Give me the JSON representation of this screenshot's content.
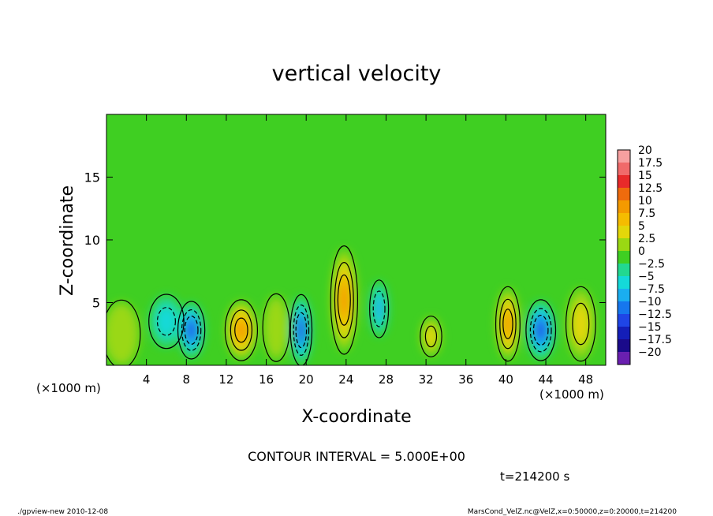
{
  "chart_data": {
    "type": "heatmap",
    "title": "vertical velocity",
    "xlabel": "X-coordinate",
    "ylabel": "Z-coordinate",
    "x_unit_left": "(×1000 m)",
    "x_unit_right": "(×1000 m)",
    "xlim": [
      0,
      50
    ],
    "ylim": [
      0,
      20
    ],
    "x_ticks": [
      "4",
      "8",
      "12",
      "16",
      "20",
      "24",
      "28",
      "32",
      "36",
      "40",
      "44",
      "48"
    ],
    "y_ticks": [
      "5",
      "10",
      "15"
    ],
    "contour_interval_text": "CONTOUR INTERVAL = 5.000E+00",
    "time_text": "t=214200 s",
    "colorbar": {
      "labels": [
        "20",
        "17.5",
        "15",
        "12.5",
        "10",
        "7.5",
        "5",
        "2.5",
        "0",
        "−2.5",
        "−5",
        "−7.5",
        "−10",
        "−12.5",
        "−15",
        "−17.5",
        "−20"
      ],
      "colors": [
        "#f7a0a0",
        "#f06a6a",
        "#e82a2a",
        "#ef6b0d",
        "#f49a00",
        "#f5bc00",
        "#e3d70a",
        "#9ad813",
        "#3fcf22",
        "#22d890",
        "#14d9d9",
        "#1aaef0",
        "#1677ee",
        "#1f45e6",
        "#141eb8",
        "#1a0a8a",
        "#6a1fb0"
      ]
    },
    "cells": [
      {
        "x": 1.5,
        "z": 2.5,
        "value": 4,
        "sx": 1.4,
        "sz": 2.0
      },
      {
        "x": 6.0,
        "z": 3.5,
        "value": -5,
        "sx": 1.3,
        "sz": 1.6
      },
      {
        "x": 8.5,
        "z": 2.8,
        "value": -13,
        "sx": 1.0,
        "sz": 1.7
      },
      {
        "x": 13.5,
        "z": 2.8,
        "value": 10,
        "sx": 1.2,
        "sz": 1.8
      },
      {
        "x": 17.0,
        "z": 3.0,
        "value": 3,
        "sx": 1.0,
        "sz": 2.0
      },
      {
        "x": 19.5,
        "z": 2.8,
        "value": -13,
        "sx": 0.8,
        "sz": 2.1
      },
      {
        "x": 23.8,
        "z": 5.2,
        "value": 12,
        "sx": 1.0,
        "sz": 3.2
      },
      {
        "x": 27.3,
        "z": 4.5,
        "value": -8,
        "sx": 0.7,
        "sz": 1.7
      },
      {
        "x": 32.5,
        "z": 2.3,
        "value": 5,
        "sx": 0.8,
        "sz": 1.2
      },
      {
        "x": 40.2,
        "z": 3.3,
        "value": 10,
        "sx": 0.9,
        "sz": 2.2
      },
      {
        "x": 43.5,
        "z": 2.8,
        "value": -13,
        "sx": 1.1,
        "sz": 1.8
      },
      {
        "x": 47.5,
        "z": 3.3,
        "value": 6,
        "sx": 1.1,
        "sz": 2.2
      }
    ]
  },
  "footer": {
    "left": "./gpview-new   2010-12-08",
    "right": "MarsCond_VelZ.nc@VelZ,x=0:50000,z=0:20000,t=214200"
  }
}
